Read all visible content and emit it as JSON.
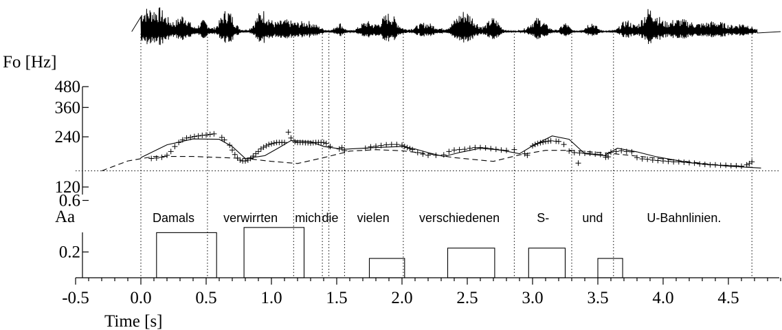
{
  "chart_data": {
    "type": "line",
    "x_axis": {
      "label": "Time [s]",
      "range": [
        -0.5,
        4.9
      ],
      "ticks": [
        -0.5,
        0.0,
        0.5,
        1.0,
        1.5,
        2.0,
        2.5,
        3.0,
        3.5,
        4.0,
        4.5
      ],
      "tick_labels": [
        "-0.5",
        "0.0",
        "0.5",
        "1.0",
        "1.5",
        "2.0",
        "2.5",
        "3.0",
        "3.5",
        "4.0",
        "4.5"
      ]
    },
    "f0_panel": {
      "ylabel": "Fo [Hz]",
      "scale": "log",
      "ylim": [
        110,
        520
      ],
      "ticks": [
        120,
        240,
        360,
        480
      ],
      "tick_labels": [
        "120",
        "240",
        "360",
        "480"
      ],
      "reference_line_hz": 150,
      "model_contour": [
        [
          0.0,
          180
        ],
        [
          0.2,
          215
        ],
        [
          0.4,
          233
        ],
        [
          0.6,
          232
        ],
        [
          0.7,
          210
        ],
        [
          0.8,
          178
        ],
        [
          0.95,
          185
        ],
        [
          1.05,
          205
        ],
        [
          1.15,
          228
        ],
        [
          1.3,
          225
        ],
        [
          1.4,
          210
        ],
        [
          1.55,
          202
        ],
        [
          1.8,
          207
        ],
        [
          2.0,
          210
        ],
        [
          2.1,
          203
        ],
        [
          2.2,
          193
        ],
        [
          2.32,
          183
        ],
        [
          2.45,
          194
        ],
        [
          2.6,
          205
        ],
        [
          2.75,
          200
        ],
        [
          2.9,
          190
        ],
        [
          3.0,
          212
        ],
        [
          3.15,
          243
        ],
        [
          3.28,
          232
        ],
        [
          3.4,
          190
        ],
        [
          3.55,
          185
        ],
        [
          3.65,
          205
        ],
        [
          3.8,
          195
        ],
        [
          3.95,
          182
        ],
        [
          4.2,
          168
        ],
        [
          4.5,
          160
        ],
        [
          4.75,
          156
        ]
      ],
      "phrase_component": [
        [
          -0.3,
          150
        ],
        [
          -0.1,
          172
        ],
        [
          0.1,
          183
        ],
        [
          0.4,
          183
        ],
        [
          0.8,
          178
        ],
        [
          1.0,
          171
        ],
        [
          1.2,
          166
        ],
        [
          1.4,
          180
        ],
        [
          1.6,
          197
        ],
        [
          1.8,
          201
        ],
        [
          2.0,
          198
        ],
        [
          2.2,
          190
        ],
        [
          2.4,
          180
        ],
        [
          2.7,
          171
        ],
        [
          2.9,
          187
        ],
        [
          3.1,
          199
        ],
        [
          3.3,
          199
        ],
        [
          3.6,
          191
        ],
        [
          4.0,
          177
        ],
        [
          4.4,
          163
        ],
        [
          4.7,
          157
        ]
      ],
      "measured_f0": [
        [
          0.08,
          178
        ],
        [
          0.12,
          179
        ],
        [
          0.16,
          181
        ],
        [
          0.2,
          186
        ],
        [
          0.23,
          196
        ],
        [
          0.26,
          210
        ],
        [
          0.29,
          222
        ],
        [
          0.32,
          230
        ],
        [
          0.35,
          236
        ],
        [
          0.38,
          238
        ],
        [
          0.41,
          241
        ],
        [
          0.44,
          243
        ],
        [
          0.47,
          245
        ],
        [
          0.5,
          246
        ],
        [
          0.53,
          248
        ],
        [
          0.56,
          250
        ],
        [
          0.62,
          238
        ],
        [
          0.64,
          230
        ],
        [
          0.68,
          214
        ],
        [
          0.7,
          200
        ],
        [
          0.72,
          188
        ],
        [
          0.74,
          179
        ],
        [
          0.76,
          174
        ],
        [
          0.78,
          172
        ],
        [
          0.8,
          172
        ],
        [
          0.82,
          174
        ],
        [
          0.84,
          178
        ],
        [
          0.86,
          184
        ],
        [
          0.88,
          190
        ],
        [
          0.9,
          196
        ],
        [
          0.92,
          203
        ],
        [
          0.94,
          208
        ],
        [
          0.96,
          212
        ],
        [
          0.98,
          216
        ],
        [
          1.0,
          218
        ],
        [
          1.02,
          220
        ],
        [
          1.04,
          222
        ],
        [
          1.06,
          222
        ],
        [
          1.08,
          222
        ],
        [
          1.1,
          222
        ],
        [
          1.13,
          256
        ],
        [
          1.15,
          236
        ],
        [
          1.18,
          224
        ],
        [
          1.2,
          222
        ],
        [
          1.22,
          222
        ],
        [
          1.24,
          222
        ],
        [
          1.26,
          221
        ],
        [
          1.28,
          221
        ],
        [
          1.3,
          220
        ],
        [
          1.32,
          221
        ],
        [
          1.34,
          222
        ],
        [
          1.36,
          222
        ],
        [
          1.38,
          222
        ],
        [
          1.4,
          222
        ],
        [
          1.42,
          219
        ],
        [
          1.45,
          210
        ],
        [
          1.52,
          203
        ],
        [
          1.54,
          207
        ],
        [
          1.56,
          198
        ],
        [
          1.72,
          205
        ],
        [
          1.76,
          209
        ],
        [
          1.8,
          211
        ],
        [
          1.84,
          213
        ],
        [
          1.88,
          215
        ],
        [
          1.92,
          216
        ],
        [
          1.96,
          216
        ],
        [
          2.0,
          214
        ],
        [
          2.02,
          210
        ],
        [
          2.04,
          207
        ],
        [
          2.06,
          204
        ],
        [
          2.08,
          201
        ],
        [
          2.12,
          193
        ],
        [
          2.16,
          189
        ],
        [
          2.2,
          186
        ],
        [
          2.26,
          186
        ],
        [
          2.32,
          187
        ],
        [
          2.36,
          196
        ],
        [
          2.4,
          200
        ],
        [
          2.44,
          201
        ],
        [
          2.48,
          202
        ],
        [
          2.52,
          205
        ],
        [
          2.56,
          207
        ],
        [
          2.6,
          207
        ],
        [
          2.64,
          206
        ],
        [
          2.68,
          204
        ],
        [
          2.72,
          202
        ],
        [
          2.76,
          200
        ],
        [
          2.8,
          199
        ],
        [
          2.86,
          201
        ],
        [
          2.94,
          190
        ],
        [
          2.96,
          186
        ],
        [
          3.0,
          212
        ],
        [
          3.02,
          216
        ],
        [
          3.04,
          219
        ],
        [
          3.06,
          221
        ],
        [
          3.08,
          223
        ],
        [
          3.1,
          225
        ],
        [
          3.12,
          226
        ],
        [
          3.14,
          227
        ],
        [
          3.18,
          226
        ],
        [
          3.2,
          225
        ],
        [
          3.24,
          216
        ],
        [
          3.28,
          197
        ],
        [
          3.32,
          193
        ],
        [
          3.36,
          192
        ],
        [
          3.4,
          191
        ],
        [
          3.44,
          191
        ],
        [
          3.48,
          189
        ],
        [
          3.52,
          188
        ],
        [
          3.56,
          185
        ],
        [
          3.6,
          194
        ],
        [
          3.64,
          196
        ],
        [
          3.68,
          198
        ],
        [
          3.72,
          196
        ],
        [
          3.76,
          195
        ],
        [
          3.8,
          180
        ],
        [
          3.84,
          177
        ],
        [
          3.88,
          176
        ],
        [
          3.92,
          174
        ],
        [
          3.96,
          173
        ],
        [
          4.0,
          172
        ],
        [
          4.04,
          171
        ],
        [
          4.08,
          170
        ],
        [
          4.12,
          170
        ],
        [
          4.16,
          169
        ],
        [
          4.2,
          168
        ],
        [
          4.24,
          167
        ],
        [
          4.28,
          165
        ],
        [
          4.32,
          164
        ],
        [
          4.36,
          163
        ],
        [
          4.4,
          163
        ],
        [
          4.44,
          162
        ],
        [
          4.48,
          162
        ],
        [
          4.52,
          161
        ],
        [
          4.56,
          161
        ],
        [
          4.6,
          160
        ],
        [
          4.64,
          163
        ],
        [
          4.66,
          166
        ],
        [
          4.68,
          170
        ],
        [
          3.35,
          167
        ],
        [
          3.56,
          181
        ],
        [
          3.58,
          182
        ]
      ]
    },
    "accent_panel": {
      "ylabel": "Aa",
      "ylim": [
        0,
        0.8
      ],
      "ticks": [
        0.2,
        0.6
      ],
      "tick_labels": [
        "0.2",
        "0.6"
      ],
      "accent_commands": [
        {
          "t_on": 0.12,
          "t_off": 0.58,
          "amplitude": 0.35
        },
        {
          "t_on": 0.79,
          "t_off": 1.25,
          "amplitude": 0.39
        },
        {
          "t_on": 1.75,
          "t_off": 2.02,
          "amplitude": 0.15
        },
        {
          "t_on": 2.35,
          "t_off": 2.71,
          "amplitude": 0.23
        },
        {
          "t_on": 2.97,
          "t_off": 3.25,
          "amplitude": 0.23
        },
        {
          "t_on": 3.5,
          "t_off": 3.69,
          "amplitude": 0.15
        }
      ]
    },
    "word_boundaries": [
      0.0,
      0.51,
      1.17,
      1.39,
      1.44,
      1.56,
      2.01,
      2.86,
      3.3,
      3.62,
      4.68
    ],
    "words": [
      {
        "text": "Damals",
        "t": 0.25
      },
      {
        "text": "verwirrten",
        "t": 0.84
      },
      {
        "text": "mich",
        "t": 1.28
      },
      {
        "text": "die",
        "t": 1.45
      },
      {
        "text": "vielen",
        "t": 1.78
      },
      {
        "text": "verschiedenen",
        "t": 2.44
      },
      {
        "text": "S-",
        "t": 3.08
      },
      {
        "text": "und",
        "t": 3.46
      },
      {
        "text": "U-Bahnlinien.",
        "t": 4.16
      }
    ]
  }
}
